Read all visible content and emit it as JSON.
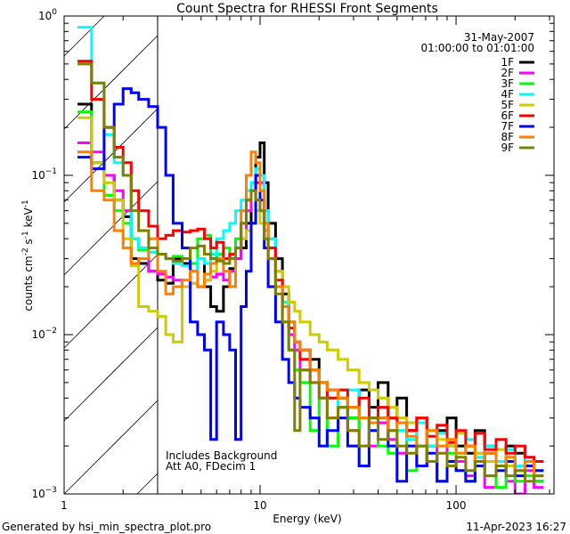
{
  "chart_data": {
    "type": "line",
    "title": "Count Spectra for RHESSI Front Segments",
    "xlabel": "Energy (keV)",
    "ylabel": {
      "base": "counts cm",
      "e1": "-2",
      "s": " s",
      "e2": "-1",
      "k": " keV",
      "e3": "-1"
    },
    "xscale": "log",
    "yscale": "log",
    "xlim": [
      1,
      316
    ],
    "ylim": [
      0.001,
      1
    ],
    "x_ticks": [
      {
        "v": 1,
        "label": "1"
      },
      {
        "v": 10,
        "label": "10"
      },
      {
        "v": 100,
        "label": "100"
      }
    ],
    "y_ticks": [
      {
        "v": 1,
        "base": "10",
        "exp": "0"
      },
      {
        "v": 0.1,
        "base": "10",
        "exp": "-1"
      },
      {
        "v": 0.01,
        "base": "10",
        "exp": "-2"
      },
      {
        "v": 0.001,
        "base": "10",
        "exp": "-3"
      }
    ],
    "date": "31-May-2007",
    "time_range": "01:00:00 to 01:01:00",
    "annotations": [
      "Includes Background",
      "Att A0, FDecim 1"
    ],
    "hatched_region_keV": [
      1,
      3
    ],
    "legend_position": "top-right",
    "energy_edges": [
      1.17,
      1.38,
      1.6,
      1.8,
      2.0,
      2.2,
      2.4,
      2.7,
      3.0,
      3.3,
      3.6,
      4.0,
      4.4,
      4.8,
      5.2,
      5.6,
      6.0,
      6.5,
      7.0,
      7.5,
      8.0,
      8.5,
      9.0,
      9.5,
      10,
      10.5,
      11,
      12,
      13,
      14,
      15,
      16,
      18,
      20,
      22,
      25,
      28,
      32,
      36,
      40,
      45,
      50,
      56,
      63,
      71,
      80,
      90,
      100,
      112,
      125,
      140,
      160,
      180,
      200,
      225,
      250,
      280,
      316
    ],
    "series": [
      {
        "name": "1F",
        "color": "#000000",
        "values": [
          0.28,
          0.12,
          0.1,
          0.07,
          0.055,
          0.03,
          0.028,
          0.025,
          0.022,
          0.021,
          0.03,
          0.028,
          0.025,
          0.03,
          0.02,
          0.015,
          0.014,
          0.02,
          0.026,
          0.03,
          0.035,
          0.05,
          0.09,
          0.13,
          0.16,
          0.09,
          0.05,
          0.03,
          0.018,
          0.012,
          0.009,
          0.008,
          0.007,
          0.005,
          0.0045,
          0.004,
          0.003,
          0.0045,
          0.0035,
          0.005,
          0.003,
          0.004,
          0.0025,
          0.003,
          0.002,
          0.0025,
          0.003,
          0.002,
          0.0018,
          0.0025,
          0.002,
          0.0015,
          0.002,
          0.0018,
          0.0015,
          0.0012
        ]
      },
      {
        "name": "2F",
        "color": "#ff00ff",
        "values": [
          0.16,
          0.14,
          0.1,
          0.08,
          0.06,
          0.04,
          0.035,
          0.025,
          0.024,
          0.023,
          0.022,
          0.02,
          0.021,
          0.02,
          0.022,
          0.023,
          0.024,
          0.022,
          0.025,
          0.03,
          0.04,
          0.06,
          0.08,
          0.1,
          0.09,
          0.06,
          0.04,
          0.025,
          0.015,
          0.01,
          0.008,
          0.006,
          0.005,
          0.004,
          0.003,
          0.0035,
          0.0025,
          0.003,
          0.002,
          0.0028,
          0.0022,
          0.0018,
          0.0025,
          0.0015,
          0.002,
          0.0012,
          0.002,
          0.0016,
          0.0013,
          0.0018,
          0.0011,
          0.0015,
          0.0012,
          0.001,
          0.0014,
          0.0011
        ]
      },
      {
        "name": "3F",
        "color": "#00ff00",
        "values": [
          0.25,
          0.12,
          0.075,
          0.06,
          0.05,
          0.04,
          0.034,
          0.033,
          0.032,
          0.03,
          0.031,
          0.03,
          0.028,
          0.04,
          0.042,
          0.03,
          0.032,
          0.035,
          0.03,
          0.04,
          0.05,
          0.07,
          0.09,
          0.1,
          0.08,
          0.05,
          0.035,
          0.02,
          0.012,
          0.008,
          0.006,
          0.005,
          0.0025,
          0.004,
          0.002,
          0.0035,
          0.003,
          0.0015,
          0.003,
          0.002,
          0.0018,
          0.0025,
          0.0014,
          0.002,
          0.0016,
          0.0012,
          0.0018,
          0.0014,
          0.0012,
          0.0016,
          0.0013,
          0.0011,
          0.0015,
          0.0012,
          0.0013,
          0.0012
        ]
      },
      {
        "name": "4F",
        "color": "#00ffff",
        "values": [
          0.85,
          0.38,
          0.18,
          0.12,
          0.1,
          0.04,
          0.035,
          0.033,
          0.032,
          0.03,
          0.028,
          0.027,
          0.025,
          0.03,
          0.028,
          0.032,
          0.04,
          0.045,
          0.05,
          0.06,
          0.07,
          0.08,
          0.09,
          0.11,
          0.1,
          0.06,
          0.04,
          0.025,
          0.016,
          0.012,
          0.009,
          0.007,
          0.006,
          0.005,
          0.004,
          0.0035,
          0.0045,
          0.003,
          0.0025,
          0.0035,
          0.003,
          0.0025,
          0.0022,
          0.0028,
          0.002,
          0.0024,
          0.002,
          0.0018,
          0.0022,
          0.0017,
          0.002,
          0.0016,
          0.0019,
          0.0015,
          0.0017,
          0.0014
        ]
      },
      {
        "name": "5F",
        "color": "#cccc00",
        "values": [
          0.23,
          0.12,
          0.09,
          0.07,
          0.04,
          0.027,
          0.015,
          0.014,
          0.013,
          0.01,
          0.009,
          0.02,
          0.021,
          0.02,
          0.022,
          0.025,
          0.03,
          0.03,
          0.032,
          0.035,
          0.04,
          0.045,
          0.05,
          0.06,
          0.05,
          0.045,
          0.03,
          0.025,
          0.02,
          0.016,
          0.014,
          0.012,
          0.01,
          0.009,
          0.008,
          0.007,
          0.006,
          0.005,
          0.0045,
          0.004,
          0.0035,
          0.003,
          0.0028,
          0.003,
          0.0025,
          0.0022,
          0.002,
          0.0024,
          0.002,
          0.0018,
          0.0016,
          0.0019,
          0.0015,
          0.0014,
          0.0016,
          0.0013
        ]
      },
      {
        "name": "6F",
        "color": "#ff0000",
        "values": [
          0.52,
          0.3,
          0.2,
          0.15,
          0.12,
          0.08,
          0.06,
          0.048,
          0.04,
          0.042,
          0.045,
          0.044,
          0.045,
          0.046,
          0.04,
          0.035,
          0.038,
          0.03,
          0.032,
          0.035,
          0.05,
          0.07,
          0.08,
          0.09,
          0.07,
          0.05,
          0.035,
          0.022,
          0.015,
          0.011,
          0.009,
          0.007,
          0.006,
          0.005,
          0.004,
          0.0045,
          0.0035,
          0.004,
          0.003,
          0.0035,
          0.003,
          0.0028,
          0.0025,
          0.003,
          0.0023,
          0.0027,
          0.0021,
          0.0025,
          0.002,
          0.0024,
          0.0019,
          0.0022,
          0.0018,
          0.002,
          0.0017,
          0.0016
        ]
      },
      {
        "name": "7F",
        "color": "#0000ff",
        "values": [
          0.13,
          0.11,
          0.2,
          0.28,
          0.35,
          0.33,
          0.3,
          0.27,
          0.2,
          0.1,
          0.05,
          0.035,
          0.012,
          0.01,
          0.008,
          0.0022,
          0.012,
          0.01,
          0.008,
          0.0022,
          0.015,
          0.025,
          0.05,
          0.1,
          0.07,
          0.035,
          0.02,
          0.012,
          0.007,
          0.005,
          0.004,
          0.0035,
          0.003,
          0.002,
          0.0025,
          0.003,
          0.002,
          0.0015,
          0.0025,
          0.003,
          0.002,
          0.0012,
          0.002,
          0.0015,
          0.0018,
          0.0012,
          0.0016,
          0.0014,
          0.0012,
          0.0015,
          0.0018,
          0.0014,
          0.0016,
          0.0013,
          0.0015,
          0.0014
        ]
      },
      {
        "name": "8F",
        "color": "#ff8000",
        "values": [
          0.14,
          0.08,
          0.07,
          0.045,
          0.035,
          0.028,
          0.03,
          0.04,
          0.025,
          0.018,
          0.02,
          0.022,
          0.025,
          0.02,
          0.024,
          0.028,
          0.03,
          0.025,
          0.02,
          0.035,
          0.06,
          0.1,
          0.14,
          0.12,
          0.08,
          0.05,
          0.03,
          0.02,
          0.015,
          0.012,
          0.009,
          0.008,
          0.006,
          0.005,
          0.0045,
          0.004,
          0.0035,
          0.003,
          0.0028,
          0.003,
          0.0025,
          0.0028,
          0.0023,
          0.002,
          0.0025,
          0.002,
          0.0022,
          0.0018,
          0.002,
          0.0016,
          0.0018,
          0.0015,
          0.0017,
          0.0014,
          0.0016,
          0.0013
        ]
      },
      {
        "name": "9F",
        "color": "#808000",
        "values": [
          0.5,
          0.38,
          0.2,
          0.13,
          0.1,
          0.06,
          0.045,
          0.035,
          0.032,
          0.03,
          0.029,
          0.03,
          0.035,
          0.036,
          0.032,
          0.03,
          0.029,
          0.028,
          0.03,
          0.035,
          0.05,
          0.07,
          0.08,
          0.07,
          0.06,
          0.04,
          0.03,
          0.018,
          0.012,
          0.008,
          0.0025,
          0.006,
          0.005,
          0.004,
          0.003,
          0.0035,
          0.0025,
          0.002,
          0.003,
          0.0022,
          0.0025,
          0.002,
          0.0018,
          0.002,
          0.0016,
          0.0018,
          0.0015,
          0.0017,
          0.0014,
          0.0016,
          0.0013,
          0.0015,
          0.0013,
          0.0014,
          0.0012,
          0.0013
        ]
      }
    ]
  },
  "footer": {
    "generated": "Generated by hsi_min_spectra_plot.pro",
    "timestamp": "11-Apr-2023 16:27"
  }
}
